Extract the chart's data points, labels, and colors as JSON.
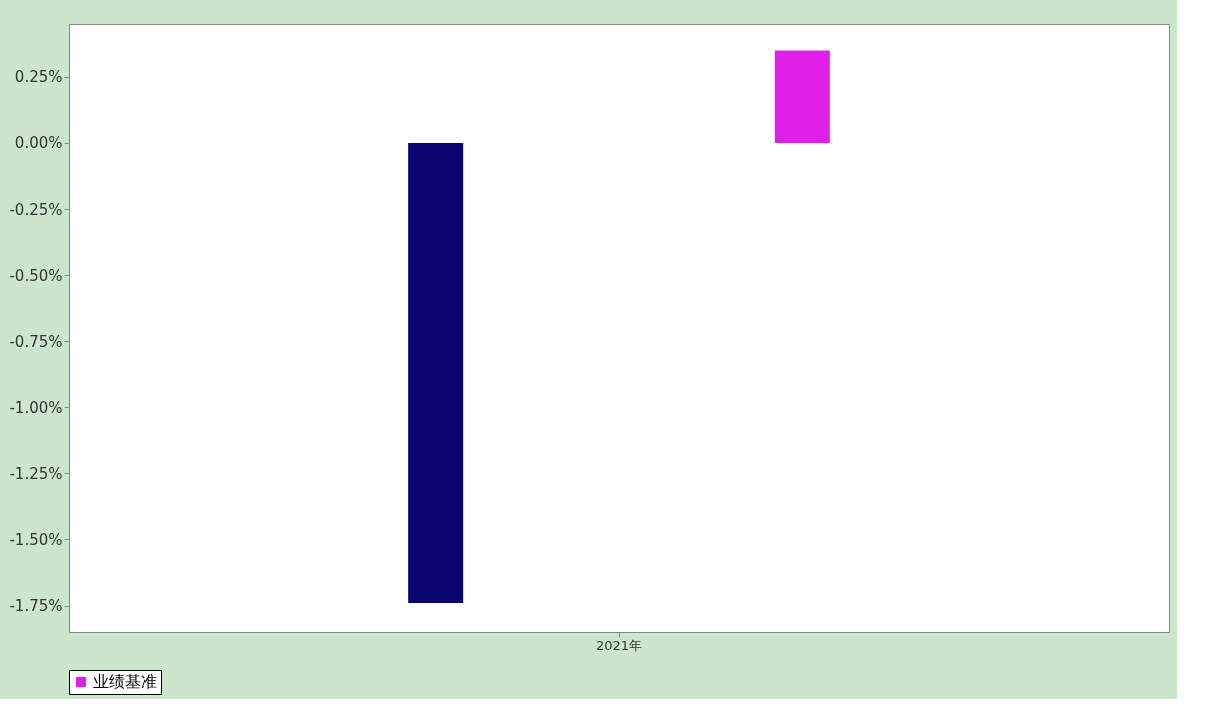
{
  "chart_data": {
    "type": "bar",
    "categories": [
      "2021年"
    ],
    "series": [
      {
        "color": "#0a0470",
        "values": [
          -1.74
        ]
      },
      {
        "name": "业绩基准",
        "color": "#e020e8",
        "values": [
          0.35
        ]
      }
    ],
    "ylim": [
      -1.85,
      0.45
    ],
    "yticks": [
      {
        "value": 0.25,
        "label": "0.25%"
      },
      {
        "value": 0,
        "label": "0.00%"
      },
      {
        "value": -0.25,
        "label": "-0.25%"
      },
      {
        "value": -0.5,
        "label": "-0.50%"
      },
      {
        "value": -0.75,
        "label": "-0.75%"
      },
      {
        "value": -1,
        "label": "-1.00%"
      },
      {
        "value": -1.25,
        "label": "-1.25%"
      },
      {
        "value": -1.5,
        "label": "-1.50%"
      },
      {
        "value": -1.75,
        "label": "-1.75%"
      }
    ],
    "grid": false,
    "legend": "bottom"
  }
}
